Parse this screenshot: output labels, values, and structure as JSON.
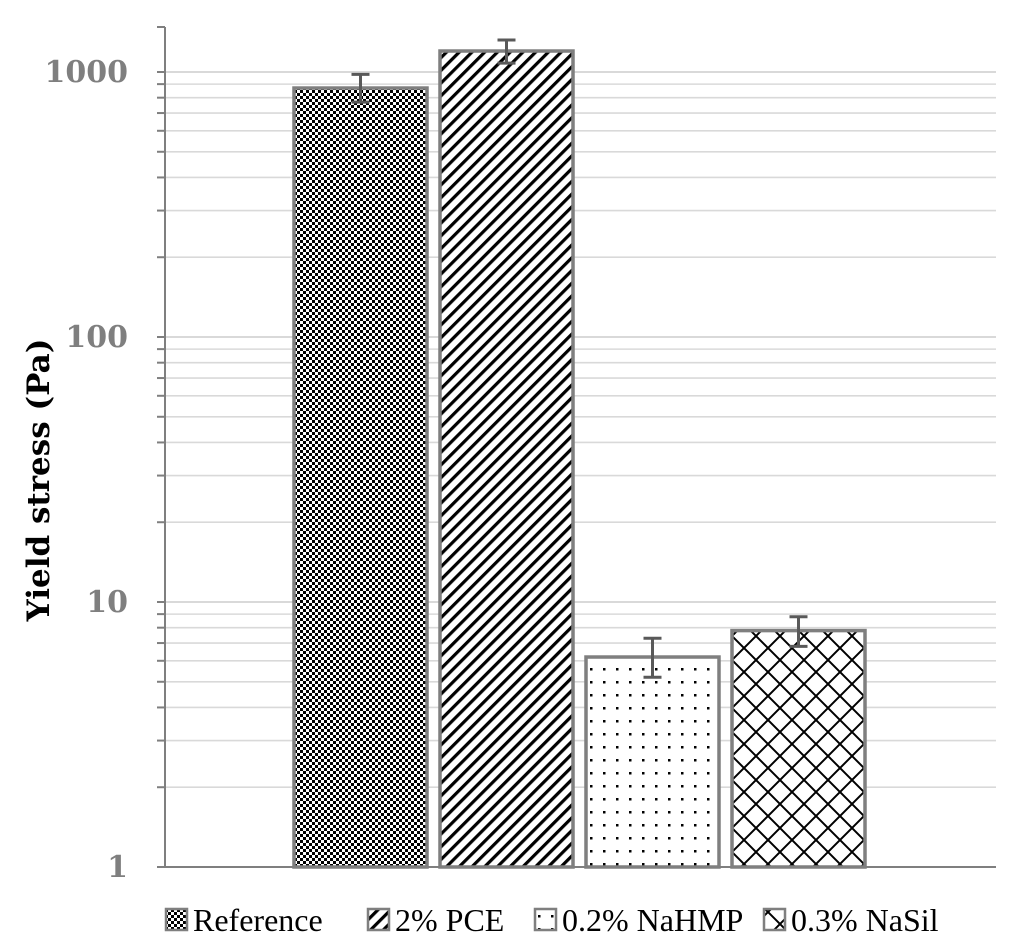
{
  "chart_data": {
    "type": "bar",
    "categories": [
      "Reference",
      "2% PCE",
      "0.2% NaHMP",
      "0.3% NaSil"
    ],
    "values": [
      870,
      1200,
      6.2,
      7.8
    ],
    "error": [
      {
        "low": 770,
        "high": 980
      },
      {
        "low": 1080,
        "high": 1320
      },
      {
        "low": 5.2,
        "high": 7.3
      },
      {
        "low": 6.8,
        "high": 8.8
      }
    ],
    "ylabel": "Yield stress (Pa)",
    "xlabel": "",
    "yscale": "log",
    "ylim": [
      1,
      2000
    ],
    "yticks": [
      "1",
      "10",
      "100",
      "1000"
    ],
    "grid": true,
    "legend": "bottom",
    "patterns": [
      "checker",
      "diagonal",
      "dots",
      "crosshatch"
    ],
    "colors": {
      "bar_edge": "#7f7f7f",
      "pattern": "#000000",
      "grid": "#d9d9d9",
      "tick_text": "#7f7f7f"
    }
  }
}
